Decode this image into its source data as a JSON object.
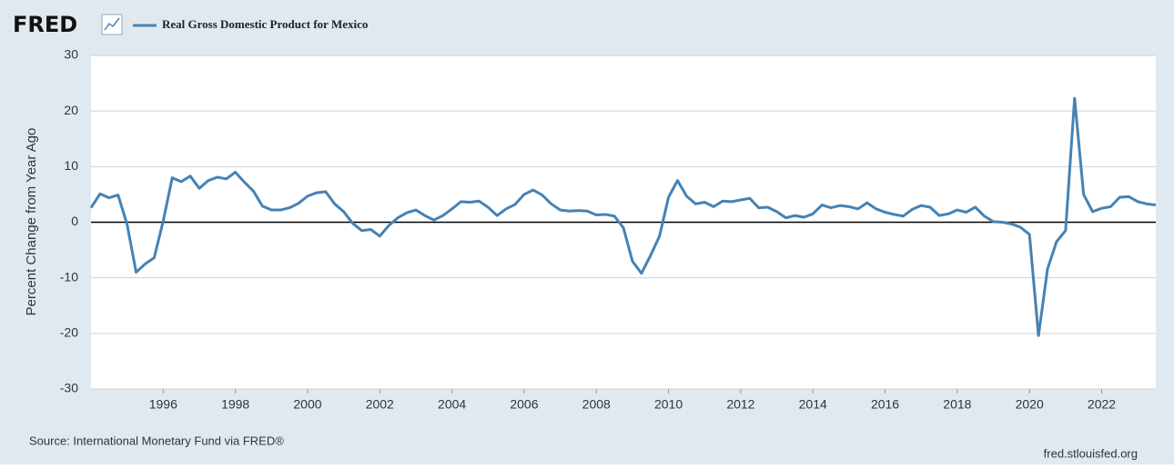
{
  "logo": "FRED",
  "source": "Source: International Monetary Fund via FRED®",
  "site": "fred.stlouisfed.org",
  "chart_data": {
    "type": "line",
    "y_label": "Percent Change from Year Ago",
    "x": [
      1994,
      1994.25,
      1994.5,
      1994.75,
      1995,
      1995.25,
      1995.5,
      1995.75,
      1996,
      1996.25,
      1996.5,
      1996.75,
      1997,
      1997.25,
      1997.5,
      1997.75,
      1998,
      1998.25,
      1998.5,
      1998.75,
      1999,
      1999.25,
      1999.5,
      1999.75,
      2000,
      2000.25,
      2000.5,
      2000.75,
      2001,
      2001.25,
      2001.5,
      2001.75,
      2002,
      2002.25,
      2002.5,
      2002.75,
      2003,
      2003.25,
      2003.5,
      2003.75,
      2004,
      2004.25,
      2004.5,
      2004.75,
      2005,
      2005.25,
      2005.5,
      2005.75,
      2006,
      2006.25,
      2006.5,
      2006.75,
      2007,
      2007.25,
      2007.5,
      2007.75,
      2008,
      2008.25,
      2008.5,
      2008.75,
      2009,
      2009.25,
      2009.5,
      2009.75,
      2010,
      2010.25,
      2010.5,
      2010.75,
      2011,
      2011.25,
      2011.5,
      2011.75,
      2012,
      2012.25,
      2012.5,
      2012.75,
      2013,
      2013.25,
      2013.5,
      2013.75,
      2014,
      2014.25,
      2014.5,
      2014.75,
      2015,
      2015.25,
      2015.5,
      2015.75,
      2016,
      2016.25,
      2016.5,
      2016.75,
      2017,
      2017.25,
      2017.5,
      2017.75,
      2018,
      2018.25,
      2018.5,
      2018.75,
      2019,
      2019.25,
      2019.5,
      2019.75,
      2020,
      2020.25,
      2020.5,
      2020.75,
      2021,
      2021.25,
      2021.5,
      2021.75,
      2022,
      2022.25,
      2022.5,
      2022.75,
      2023,
      2023.25,
      2023.5
    ],
    "series": [
      {
        "name": "Real Gross Domestic Product for Mexico",
        "color": "#4682b4",
        "values": [
          2.6,
          5.1,
          4.4,
          4.9,
          -0.4,
          -9.0,
          -7.5,
          -6.4,
          0.2,
          8.0,
          7.3,
          8.3,
          6.1,
          7.5,
          8.1,
          7.8,
          9.0,
          7.2,
          5.6,
          2.9,
          2.2,
          2.2,
          2.6,
          3.4,
          4.7,
          5.3,
          5.5,
          3.3,
          1.9,
          -0.2,
          -1.5,
          -1.3,
          -2.5,
          -0.6,
          0.8,
          1.7,
          2.2,
          1.2,
          0.4,
          1.2,
          2.4,
          3.7,
          3.6,
          3.8,
          2.7,
          1.2,
          2.4,
          3.2,
          5.0,
          5.8,
          4.9,
          3.3,
          2.2,
          2.0,
          2.1,
          2.0,
          1.3,
          1.4,
          1.1,
          -1.0,
          -7.0,
          -9.2,
          -6.0,
          -2.5,
          4.5,
          7.5,
          4.7,
          3.3,
          3.6,
          2.8,
          3.8,
          3.7,
          4.0,
          4.3,
          2.6,
          2.7,
          1.9,
          0.8,
          1.2,
          0.9,
          1.5,
          3.1,
          2.6,
          3.0,
          2.8,
          2.4,
          3.5,
          2.4,
          1.8,
          1.4,
          1.1,
          2.3,
          3.0,
          2.7,
          1.2,
          1.5,
          2.2,
          1.8,
          2.7,
          1.1,
          0.1,
          0.0,
          -0.3,
          -0.9,
          -2.2,
          -20.4,
          -8.4,
          -3.5,
          -1.5,
          22.3,
          5.0,
          1.9,
          2.5,
          2.8,
          4.5,
          4.6,
          3.7,
          3.3,
          3.1
        ]
      }
    ],
    "xlim": [
      1994,
      2023.5
    ],
    "xticks": [
      1996,
      1998,
      2000,
      2002,
      2004,
      2006,
      2008,
      2010,
      2012,
      2014,
      2016,
      2018,
      2020,
      2022
    ],
    "ylim": [
      -30,
      30
    ],
    "yticks": [
      -30,
      -20,
      -10,
      0,
      10,
      20,
      30
    ],
    "grid": true
  }
}
